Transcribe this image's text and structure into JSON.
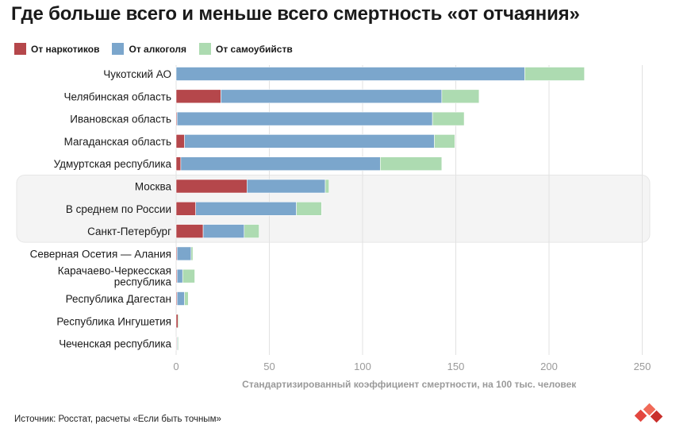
{
  "title": "Где больше всего и меньше всего смертность «от отчаяния»",
  "source": "Источник: Росстат, расчеты «Если быть точным»",
  "colors": {
    "drugs": "#b5474b",
    "alcohol": "#7ba6cc",
    "suicide": "#addbb1",
    "highlight_bg": "#f4f4f4",
    "grid": "#e2e2e2",
    "axis_text": "#9a9a9a",
    "logo": "#e3473f"
  },
  "icons": {
    "logo": "brand-logo-icon"
  },
  "chart_data": {
    "type": "bar",
    "orientation": "horizontal",
    "stacked": true,
    "categories": [
      "Чукотский АО",
      "Челябинская область",
      "Ивановская область",
      "Магаданская область",
      "Удмуртская республика",
      "Москва",
      "В среднем по России",
      "Санкт-Петербург",
      "Северная Осетия — Алания",
      "Карачаево-Черкесская республика",
      "Республика Дагестан",
      "Республика Ингушетия",
      "Чеченская республика"
    ],
    "highlighted_categories": [
      "Москва",
      "В среднем по России",
      "Санкт-Петербург"
    ],
    "series": [
      {
        "name": "От наркотиков",
        "values": [
          0,
          24,
          0.5,
          4.5,
          2.5,
          38,
          10.5,
          14.5,
          0.5,
          0.5,
          0.5,
          1,
          0.3
        ]
      },
      {
        "name": "От алкоголя",
        "values": [
          187,
          118.5,
          137,
          134,
          107,
          42,
          54,
          22,
          7.5,
          3,
          4,
          0,
          0.4
        ]
      },
      {
        "name": "От самоубийств",
        "values": [
          32,
          20,
          17,
          11,
          33,
          2,
          13.5,
          8,
          1,
          6.5,
          2,
          0.5,
          0.5
        ]
      }
    ],
    "xlim": [
      0,
      250
    ],
    "xticks": [
      0,
      50,
      100,
      150,
      200,
      250
    ],
    "xlabel": "Стандартизированный коэффициент смертности, на 100 тыс. человек",
    "ylabel": "",
    "grid": "vertical",
    "legend": "top-left"
  }
}
